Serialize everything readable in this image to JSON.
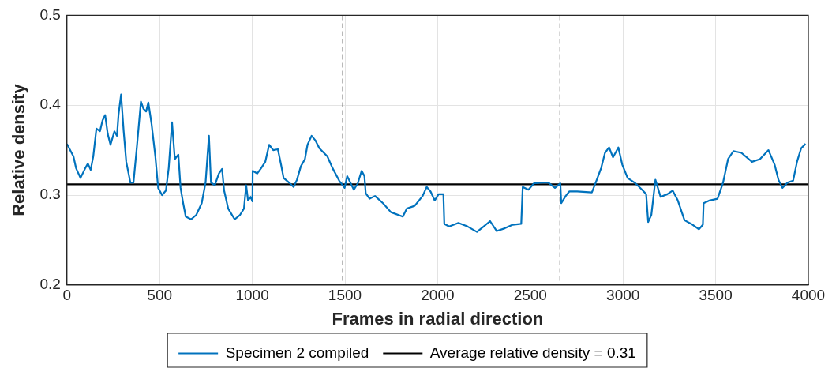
{
  "chart_data": {
    "type": "line",
    "xlabel": "Frames in radial direction",
    "ylabel": "Relative density",
    "xlim": [
      0,
      4000
    ],
    "xticks": [
      0,
      500,
      1000,
      1500,
      2000,
      2500,
      3000,
      3500,
      4000
    ],
    "ylim": [
      0.2,
      0.5
    ],
    "yticks": [
      0.2,
      0.3,
      0.4,
      0.5
    ],
    "grid": true,
    "legend": "bottom",
    "marker": "none",
    "line_style": "solid",
    "ref_lines": [
      {
        "axis": "x",
        "value": 1488,
        "color": "#555555",
        "line_style": "dashed"
      },
      {
        "axis": "x",
        "value": 2660,
        "color": "#555555",
        "line_style": "dashed"
      }
    ],
    "series": [
      {
        "name": "Specimen 2 compiled",
        "color": "#0072bd",
        "x": [
          0,
          35,
          49,
          73,
          99,
          113,
          128,
          142,
          159,
          178,
          192,
          206,
          220,
          235,
          256,
          270,
          278,
          292,
          306,
          320,
          342,
          359,
          377,
          399,
          413,
          427,
          439,
          456,
          477,
          492,
          513,
          534,
          549,
          567,
          582,
          601,
          613,
          627,
          641,
          670,
          698,
          727,
          748,
          766,
          777,
          798,
          820,
          837,
          848,
          870,
          905,
          934,
          955,
          967,
          977,
          991,
          1001,
          1002,
          1027,
          1048,
          1070,
          1091,
          1113,
          1138,
          1155,
          1169,
          1198,
          1223,
          1241,
          1262,
          1284,
          1298,
          1320,
          1340,
          1362,
          1405,
          1433,
          1469,
          1498,
          1512,
          1548,
          1569,
          1590,
          1605,
          1612,
          1633,
          1662,
          1705,
          1748,
          1812,
          1834,
          1876,
          1919,
          1941,
          1962,
          1984,
          2005,
          2031,
          2036,
          2062,
          2112,
          2162,
          2212,
          2248,
          2283,
          2319,
          2362,
          2405,
          2451,
          2459,
          2490,
          2519,
          2562,
          2597,
          2633,
          2662,
          2667,
          2691,
          2710,
          2753,
          2832,
          2853,
          2882,
          2903,
          2925,
          2946,
          2975,
          2996,
          3025,
          3068,
          3103,
          3125,
          3136,
          3153,
          3175,
          3203,
          3239,
          3268,
          3296,
          3332,
          3368,
          3410,
          3431,
          3435,
          3467,
          3510,
          3539,
          3567,
          3596,
          3639,
          3696,
          3739,
          3785,
          3818,
          3839,
          3860,
          3889,
          3918,
          3939,
          3961,
          3985
        ],
        "values": [
          0.357,
          0.343,
          0.33,
          0.319,
          0.33,
          0.335,
          0.328,
          0.343,
          0.374,
          0.371,
          0.383,
          0.389,
          0.368,
          0.356,
          0.371,
          0.366,
          0.389,
          0.412,
          0.371,
          0.337,
          0.314,
          0.314,
          0.353,
          0.404,
          0.396,
          0.393,
          0.403,
          0.38,
          0.343,
          0.308,
          0.3,
          0.305,
          0.33,
          0.381,
          0.34,
          0.345,
          0.308,
          0.291,
          0.276,
          0.273,
          0.278,
          0.291,
          0.314,
          0.366,
          0.314,
          0.311,
          0.324,
          0.329,
          0.305,
          0.285,
          0.273,
          0.278,
          0.285,
          0.311,
          0.294,
          0.298,
          0.293,
          0.327,
          0.324,
          0.33,
          0.337,
          0.356,
          0.35,
          0.351,
          0.334,
          0.319,
          0.314,
          0.309,
          0.317,
          0.332,
          0.34,
          0.356,
          0.366,
          0.361,
          0.352,
          0.343,
          0.33,
          0.316,
          0.308,
          0.321,
          0.306,
          0.313,
          0.327,
          0.321,
          0.302,
          0.296,
          0.299,
          0.291,
          0.281,
          0.276,
          0.285,
          0.288,
          0.299,
          0.309,
          0.304,
          0.294,
          0.301,
          0.301,
          0.268,
          0.265,
          0.269,
          0.265,
          0.259,
          0.265,
          0.271,
          0.26,
          0.263,
          0.267,
          0.268,
          0.309,
          0.306,
          0.313,
          0.314,
          0.314,
          0.308,
          0.313,
          0.291,
          0.299,
          0.304,
          0.304,
          0.303,
          0.314,
          0.33,
          0.347,
          0.353,
          0.342,
          0.353,
          0.334,
          0.319,
          0.313,
          0.306,
          0.301,
          0.27,
          0.278,
          0.317,
          0.298,
          0.301,
          0.305,
          0.294,
          0.272,
          0.268,
          0.262,
          0.267,
          0.291,
          0.294,
          0.296,
          0.313,
          0.34,
          0.349,
          0.347,
          0.337,
          0.34,
          0.35,
          0.334,
          0.317,
          0.308,
          0.314,
          0.316,
          0.337,
          0.352,
          0.357
        ]
      },
      {
        "name": "Average relative density = 0.31",
        "color": "#000000",
        "x": [
          0,
          4000
        ],
        "values": [
          0.312,
          0.312
        ]
      }
    ]
  }
}
